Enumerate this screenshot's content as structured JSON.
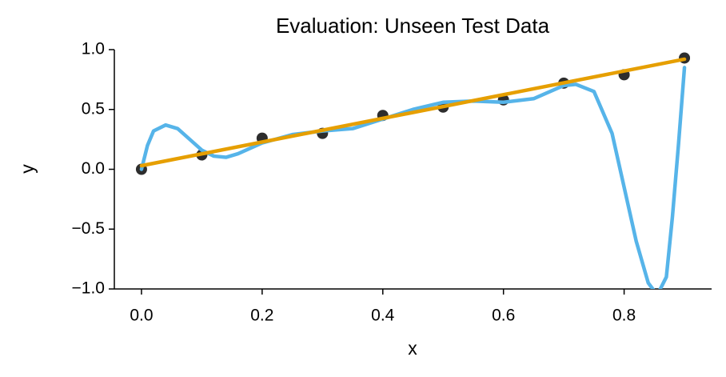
{
  "chart_data": {
    "type": "line",
    "title": "Evaluation: Unseen Test Data",
    "x_label": "x",
    "y_label": "y",
    "xlim": [
      -0.045,
      0.945
    ],
    "ylim": [
      -1.0,
      1.0
    ],
    "xticks": [
      {
        "value": 0,
        "label": "0.0"
      },
      {
        "value": 0.2,
        "label": "0.2"
      },
      {
        "value": 0.4,
        "label": "0.4"
      },
      {
        "value": 0.6,
        "label": "0.6"
      },
      {
        "value": 0.8,
        "label": "0.8"
      }
    ],
    "yticks": [
      {
        "value": -1.0,
        "label": "−1.0"
      },
      {
        "value": -0.5,
        "label": "−0.5"
      },
      {
        "value": 0,
        "label": "0.0"
      },
      0.5,
      {
        "value": 1.0,
        "label": "1.0"
      }
    ],
    "series": [
      {
        "type": "scatter",
        "color": "#222222",
        "x": [
          0,
          0.1,
          0.2,
          0.3,
          0.4,
          0.5,
          0.6,
          0.7,
          0.8,
          0.9
        ],
        "values": [
          0.0,
          0.12,
          0.26,
          0.3,
          0.45,
          0.52,
          0.58,
          0.72,
          0.79,
          0.93
        ]
      },
      {
        "type": "line",
        "color": "#56b4e9",
        "x": [
          0,
          0.01,
          0.02,
          0.04,
          0.06,
          0.08,
          0.1,
          0.12,
          0.14,
          0.16,
          0.2,
          0.25,
          0.3,
          0.35,
          0.4,
          0.45,
          0.5,
          0.55,
          0.6,
          0.65,
          0.7,
          0.72,
          0.75,
          0.78,
          0.8,
          0.82,
          0.84,
          0.855,
          0.87,
          0.88,
          0.89,
          0.9
        ],
        "values": [
          0.0,
          0.2,
          0.32,
          0.37,
          0.34,
          0.25,
          0.16,
          0.11,
          0.1,
          0.13,
          0.22,
          0.29,
          0.32,
          0.34,
          0.42,
          0.5,
          0.56,
          0.57,
          0.56,
          0.59,
          0.7,
          0.71,
          0.65,
          0.3,
          -0.15,
          -0.6,
          -0.95,
          -1.05,
          -0.9,
          -0.4,
          0.2,
          0.85
        ]
      },
      {
        "type": "line",
        "color": "#e69f00",
        "x": [
          0,
          0.9
        ],
        "values": [
          0.03,
          0.92
        ]
      }
    ]
  }
}
